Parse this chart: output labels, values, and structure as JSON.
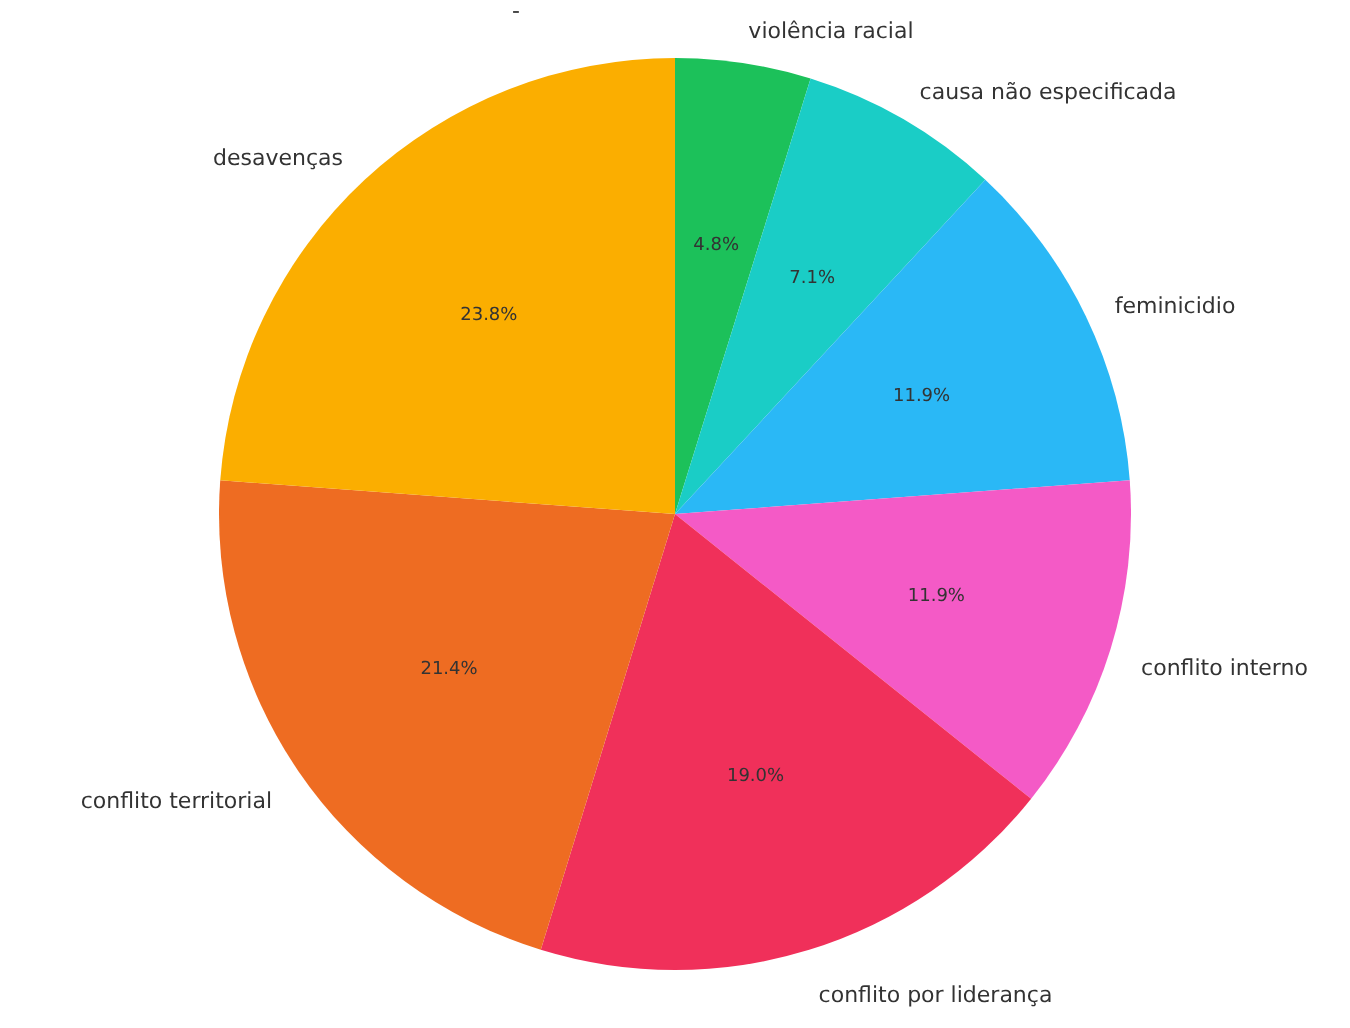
{
  "chart_data": {
    "type": "pie",
    "categories": [
      "violência racial",
      "causa não especificada",
      "feminicidio",
      "conflito interno",
      "conflito por liderança",
      "conflito territorial",
      "desavenças"
    ],
    "values": [
      4.8,
      7.1,
      11.9,
      11.9,
      19.0,
      21.4,
      23.8
    ],
    "colors": [
      "#1cc15a",
      "#1acdc6",
      "#2ab8f6",
      "#f45ac6",
      "#f0305a",
      "#ee6c22",
      "#fbae00"
    ],
    "value_labels": [
      "4.8%",
      "7.1%",
      "11.9%",
      "11.9%",
      "19.0%",
      "21.4%",
      "23.8%"
    ],
    "annotations": [
      "-"
    ]
  }
}
